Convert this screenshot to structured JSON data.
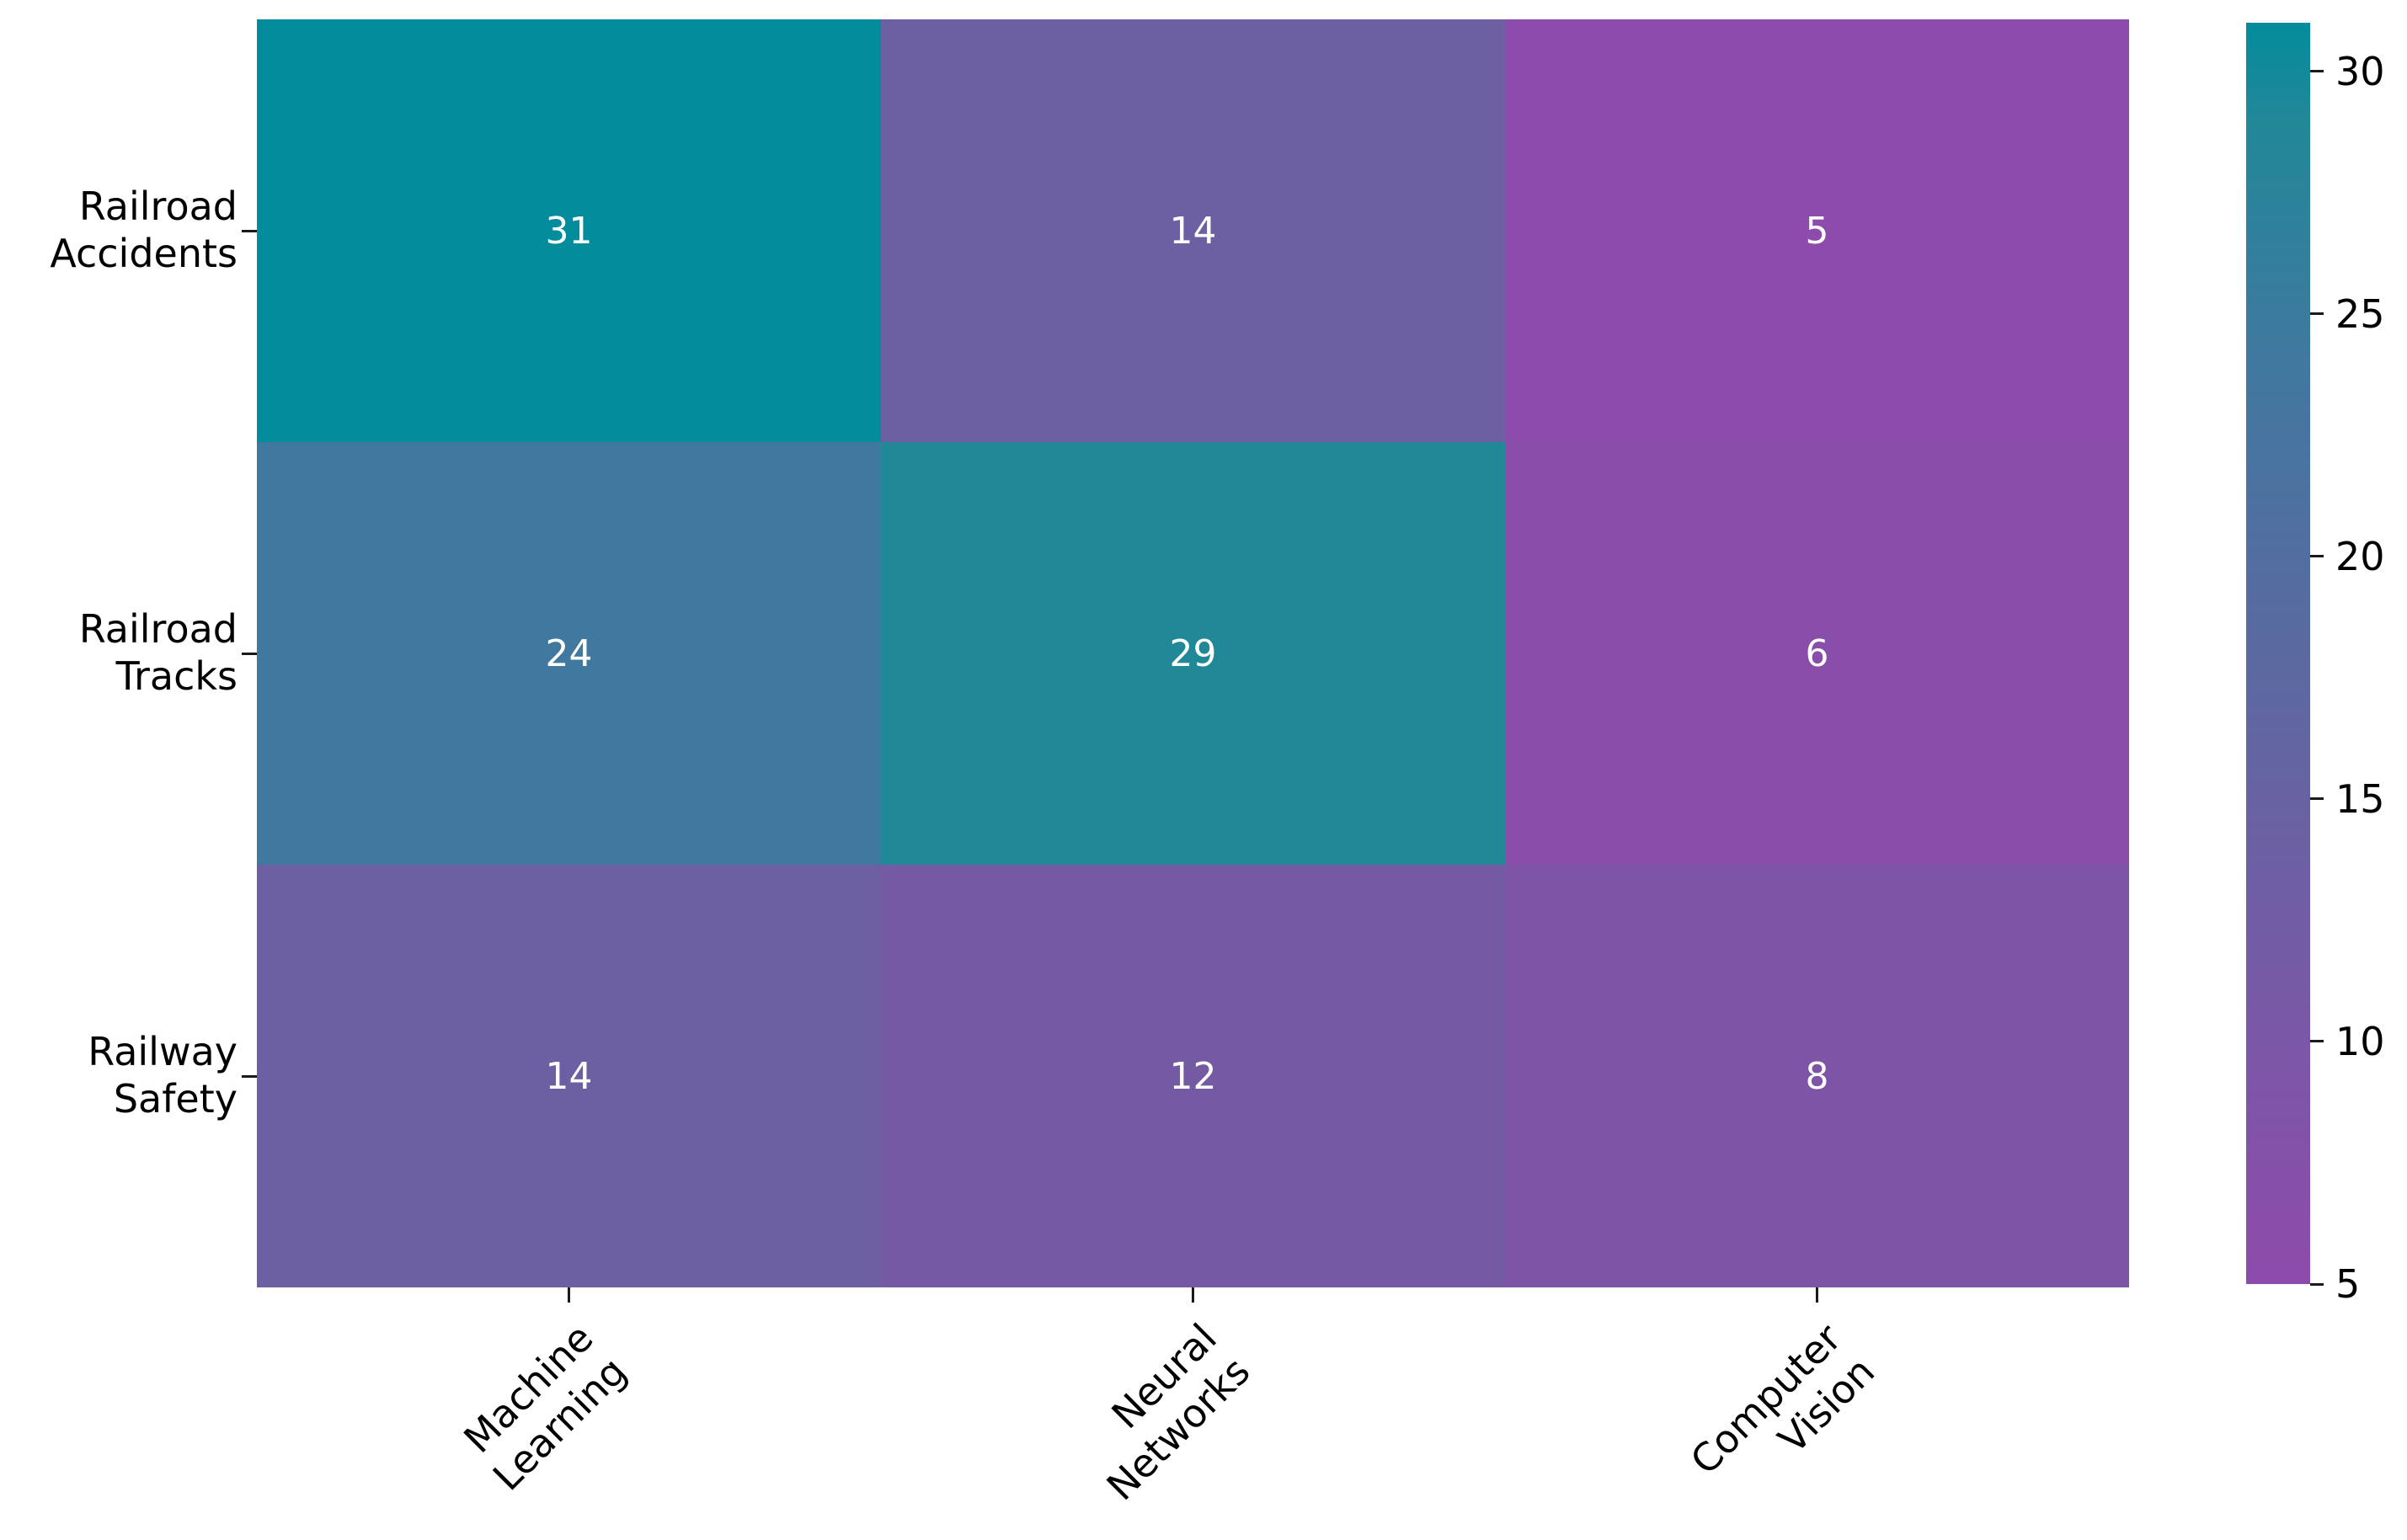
{
  "figure": {
    "background": "#ffffff",
    "text_color": "#000000"
  },
  "chart_data": {
    "type": "heatmap",
    "title": "",
    "xlabel": "",
    "ylabel": "",
    "rows": [
      {
        "label": "Railroad\nAccidents"
      },
      {
        "label": "Railroad\nTracks"
      },
      {
        "label": "Railway\nSafety"
      }
    ],
    "columns": [
      {
        "label": "Machine\nLearning"
      },
      {
        "label": "Neural\nNetworks"
      },
      {
        "label": "Computer\nVision"
      }
    ],
    "values": [
      [
        31,
        14,
        5
      ],
      [
        24,
        29,
        6
      ],
      [
        14,
        12,
        8
      ]
    ],
    "cell_colors": [
      [
        "#038c9c",
        "#6c60a3",
        "#8d4bab"
      ],
      [
        "#40789f",
        "#218898",
        "#894daa"
      ],
      [
        "#6c60a3",
        "#745aa3",
        "#7d54a6"
      ]
    ],
    "annotation_color": "#ffffff",
    "x_tick_rotation_deg": 45,
    "grid": false,
    "legend_position": "right-colorbar",
    "colorbar": {
      "vmin": 5,
      "vmax": 31,
      "ticks": [
        30,
        25,
        20,
        15,
        10,
        5
      ],
      "gradient": [
        {
          "value": 31,
          "color": "#038c9c"
        },
        {
          "value": 29,
          "color": "#218898"
        },
        {
          "value": 24,
          "color": "#40789f"
        },
        {
          "value": 20,
          "color": "#526ea0"
        },
        {
          "value": 14,
          "color": "#6c60a3"
        },
        {
          "value": 10,
          "color": "#7b57a7"
        },
        {
          "value": 5,
          "color": "#8d4bab"
        }
      ]
    }
  }
}
